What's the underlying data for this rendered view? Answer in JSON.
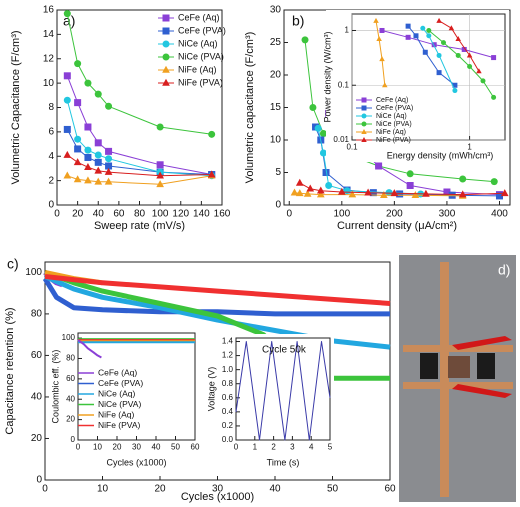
{
  "chart_data": [
    {
      "type": "line",
      "title": "a)",
      "xlabel": "Sweep rate (mV/s)",
      "ylabel": "Volumetric Capacitance (F/cm³)",
      "x": [
        10,
        20,
        30,
        40,
        50,
        100,
        150
      ],
      "xlim": [
        0,
        160
      ],
      "xticks": [
        0,
        20,
        40,
        60,
        80,
        100,
        120,
        140,
        160
      ],
      "ylim": [
        0,
        16
      ],
      "yticks": [
        0,
        2,
        4,
        6,
        8,
        10,
        12,
        14,
        16
      ],
      "series": [
        {
          "name": "CeFe (Aq)",
          "color": "#8a3fd6",
          "marker": "square",
          "values": [
            10.6,
            8.4,
            6.4,
            5.1,
            4.4,
            3.3,
            2.5
          ]
        },
        {
          "name": "CeFe (PVA)",
          "color": "#2f5fd0",
          "marker": "square",
          "values": [
            6.2,
            4.6,
            3.9,
            3.5,
            3.2,
            2.7,
            2.5
          ]
        },
        {
          "name": "NiCe (Aq)",
          "color": "#22c7e0",
          "marker": "circle",
          "values": [
            8.6,
            5.4,
            4.5,
            4.1,
            3.8,
            2.7,
            2.4
          ]
        },
        {
          "name": "NiCe (PVA)",
          "color": "#3cc43c",
          "marker": "circle",
          "values": [
            15.7,
            11.6,
            10.0,
            9.1,
            8.1,
            6.4,
            5.8
          ]
        },
        {
          "name": "NiFe (Aq)",
          "color": "#f0a020",
          "marker": "triangle",
          "values": [
            2.4,
            2.1,
            2.0,
            1.9,
            1.9,
            1.7,
            2.4
          ]
        },
        {
          "name": "NiFe (PVA)",
          "color": "#d81f1f",
          "marker": "triangle",
          "values": [
            4.1,
            3.5,
            3.1,
            2.8,
            2.7,
            2.4,
            2.5
          ]
        }
      ]
    },
    {
      "type": "line",
      "title": "b)",
      "xlabel": "Current density (μA/cm²)",
      "ylabel": "Volumetric capacitance (F/cm³)",
      "xlim": [
        -10,
        420
      ],
      "xticks": [
        0,
        100,
        200,
        300,
        400
      ],
      "ylim": [
        0,
        30
      ],
      "yticks": [
        0,
        5,
        10,
        15,
        20,
        25,
        30
      ],
      "series": [
        {
          "color": "#3cc43c",
          "marker": "circle",
          "x": [
            30,
            45,
            65,
            90,
            120,
            170,
            230,
            330,
            390
          ],
          "values": [
            25.4,
            15,
            11,
            9,
            7.5,
            6,
            4.8,
            4,
            3.6
          ]
        },
        {
          "color": "#8a3fd6",
          "marker": "square",
          "x": [
            75,
            110,
            170,
            230,
            300,
            400
          ],
          "values": [
            14.1,
            10.5,
            6,
            3,
            2,
            1.6
          ]
        },
        {
          "color": "#2f5fd0",
          "marker": "square",
          "x": [
            50,
            60,
            70,
            110,
            160,
            210,
            310,
            400
          ],
          "values": [
            12,
            10,
            5,
            2.3,
            1.9,
            1.7,
            1.5,
            1.4
          ]
        },
        {
          "color": "#22c7e0",
          "marker": "circle",
          "x": [
            55,
            65,
            75,
            110,
            190,
            250
          ],
          "values": [
            11.8,
            8,
            3,
            2.2,
            1.9,
            1.7
          ]
        },
        {
          "color": "#f0a020",
          "marker": "triangle",
          "x": [
            10,
            20,
            35,
            60,
            120,
            180,
            240,
            330
          ],
          "values": [
            1.9,
            1.8,
            1.7,
            1.6,
            1.6,
            1.5,
            1.5,
            1.4
          ]
        },
        {
          "color": "#d81f1f",
          "marker": "triangle",
          "x": [
            20,
            40,
            60,
            100,
            150,
            200,
            260,
            330,
            410
          ],
          "values": [
            3.4,
            2.5,
            2.2,
            2,
            1.9,
            1.8,
            1.7,
            1.6,
            1.8
          ]
        }
      ]
    },
    {
      "type": "line",
      "xlabel": "Energy density (mWh/cm³)",
      "ylabel": "Power density (W/cm³)",
      "log_x": true,
      "log_y": true,
      "grid": true,
      "xlim": [
        0.1,
        2
      ],
      "xticks": [
        0.1,
        1
      ],
      "ylim": [
        0.01,
        2
      ],
      "yticks": [
        0.01,
        0.1,
        1
      ],
      "series": [
        {
          "name": "CeFe (Aq)",
          "color": "#8a3fd6",
          "marker": "square",
          "x": [
            0.18,
            0.3,
            0.5,
            0.9,
            1.6
          ],
          "values": [
            1.0,
            0.75,
            0.55,
            0.45,
            0.32
          ]
        },
        {
          "name": "CeFe (PVA)",
          "color": "#2f5fd0",
          "marker": "square",
          "x": [
            0.3,
            0.35,
            0.42,
            0.55,
            0.75
          ],
          "values": [
            1.2,
            0.8,
            0.4,
            0.17,
            0.1
          ]
        },
        {
          "name": "NiCe (Aq)",
          "color": "#22c7e0",
          "marker": "circle",
          "x": [
            0.4,
            0.45,
            0.55,
            0.75
          ],
          "values": [
            1.1,
            0.8,
            0.35,
            0.08
          ]
        },
        {
          "name": "NiCe (PVA)",
          "color": "#3cc43c",
          "marker": "circle",
          "x": [
            0.45,
            0.6,
            0.8,
            1.0,
            1.3,
            1.6
          ],
          "values": [
            1.0,
            0.6,
            0.35,
            0.22,
            0.12,
            0.06
          ]
        },
        {
          "name": "NiFe (Aq)",
          "color": "#f0a020",
          "marker": "triangle",
          "x": [
            0.16,
            0.17,
            0.18,
            0.19
          ],
          "values": [
            1.5,
            0.7,
            0.3,
            0.1
          ]
        },
        {
          "name": "NiFe (PVA)",
          "color": "#d81f1f",
          "marker": "triangle",
          "x": [
            0.55,
            0.7,
            0.8,
            1.0,
            1.2
          ],
          "values": [
            1.5,
            1.1,
            0.7,
            0.35,
            0.18
          ]
        }
      ]
    },
    {
      "type": "line",
      "title": "c)",
      "xlabel": "Cycles (x1000)",
      "ylabel": "Capacitance retention (%)",
      "xlim": [
        0,
        60
      ],
      "xticks": [
        0,
        10,
        20,
        30,
        40,
        50,
        60
      ],
      "ylim": [
        0,
        105
      ],
      "yticks": [
        0,
        20,
        40,
        60,
        80,
        100
      ],
      "series": [
        {
          "name": "CeFe (Aq)",
          "color": "#8a3fd6",
          "x": [
            0,
            1,
            2,
            3
          ],
          "values": [
            100,
            97,
            95,
            94
          ]
        },
        {
          "name": "CeFe (PVA)",
          "color": "#2f5fd0",
          "x": [
            0,
            2,
            5,
            10,
            20,
            30,
            40,
            50,
            60
          ],
          "values": [
            97,
            88,
            83,
            82,
            81,
            81,
            80,
            80,
            80
          ]
        },
        {
          "name": "NiCe (Aq)",
          "color": "#22a7e0",
          "x": [
            0,
            5,
            10,
            20,
            30,
            40,
            50,
            60
          ],
          "values": [
            98,
            92,
            88,
            83,
            77,
            72,
            67,
            64
          ]
        },
        {
          "name": "NiCe (PVA)",
          "color": "#3cc43c",
          "x": [
            0,
            5,
            10,
            20,
            30,
            38,
            42,
            45,
            50,
            55,
            60
          ],
          "values": [
            100,
            95,
            91,
            85,
            79,
            70,
            60,
            52,
            49,
            49,
            49
          ]
        },
        {
          "name": "NiFe (Aq)",
          "color": "#f0a020",
          "x": [
            0,
            5,
            10
          ],
          "values": [
            100,
            97,
            95
          ]
        },
        {
          "name": "NiFe (PVA)",
          "color": "#f03030",
          "x": [
            0,
            10,
            20,
            30,
            40,
            50,
            60
          ],
          "values": [
            98,
            95,
            93,
            91,
            89,
            87,
            85
          ]
        }
      ]
    },
    {
      "type": "line",
      "xlabel": "Cycles (x1000)",
      "ylabel": "Coulombic eff. (%)",
      "xlim": [
        0,
        60
      ],
      "xticks": [
        0,
        10,
        20,
        30,
        40,
        50,
        60
      ],
      "ylim": [
        0,
        105
      ],
      "yticks": [
        0,
        20,
        40,
        60,
        80,
        100
      ],
      "series": [
        {
          "color": "#3cc43c",
          "x": [
            0,
            60
          ],
          "values": [
            99,
            99
          ]
        },
        {
          "color": "#f03030",
          "x": [
            0,
            60
          ],
          "values": [
            98,
            98
          ]
        },
        {
          "color": "#f0a020",
          "x": [
            0,
            60
          ],
          "values": [
            97,
            97
          ]
        },
        {
          "color": "#22a7e0",
          "x": [
            0,
            60
          ],
          "values": [
            96,
            96
          ]
        },
        {
          "color": "#8a3fd6",
          "x": [
            0,
            3,
            5,
            8,
            10,
            12
          ],
          "values": [
            98,
            94,
            90,
            86,
            83,
            81
          ]
        }
      ]
    },
    {
      "type": "line",
      "xlabel": "Time (s)",
      "ylabel": "Voltage (V)",
      "annotation": "Cycle 50k",
      "xlim": [
        0,
        5
      ],
      "xticks": [
        0,
        1,
        2,
        3,
        4,
        5
      ],
      "ylim": [
        0,
        1.45
      ],
      "yticks": [
        {
          "value": 0,
          "label": "0.0"
        },
        {
          "value": 0.2,
          "label": "0.2"
        },
        {
          "value": 0.4,
          "label": "0.4"
        },
        {
          "value": 0.6,
          "label": "0.6"
        },
        {
          "value": 0.8,
          "label": "0.8"
        },
        {
          "value": 1,
          "label": "1.0"
        },
        {
          "value": 1.2,
          "label": "1.2"
        },
        {
          "value": 1.4,
          "label": "1.4"
        }
      ],
      "series": [
        {
          "color": "#3a3aa8",
          "x": [
            0,
            0.55,
            1.25,
            1.9,
            2.6,
            3.25,
            3.9,
            4.55,
            5
          ],
          "values": [
            0.4,
            1.4,
            0,
            1.4,
            0,
            1.4,
            0,
            1.4,
            0.6
          ]
        }
      ]
    }
  ],
  "photo_label": "d)"
}
